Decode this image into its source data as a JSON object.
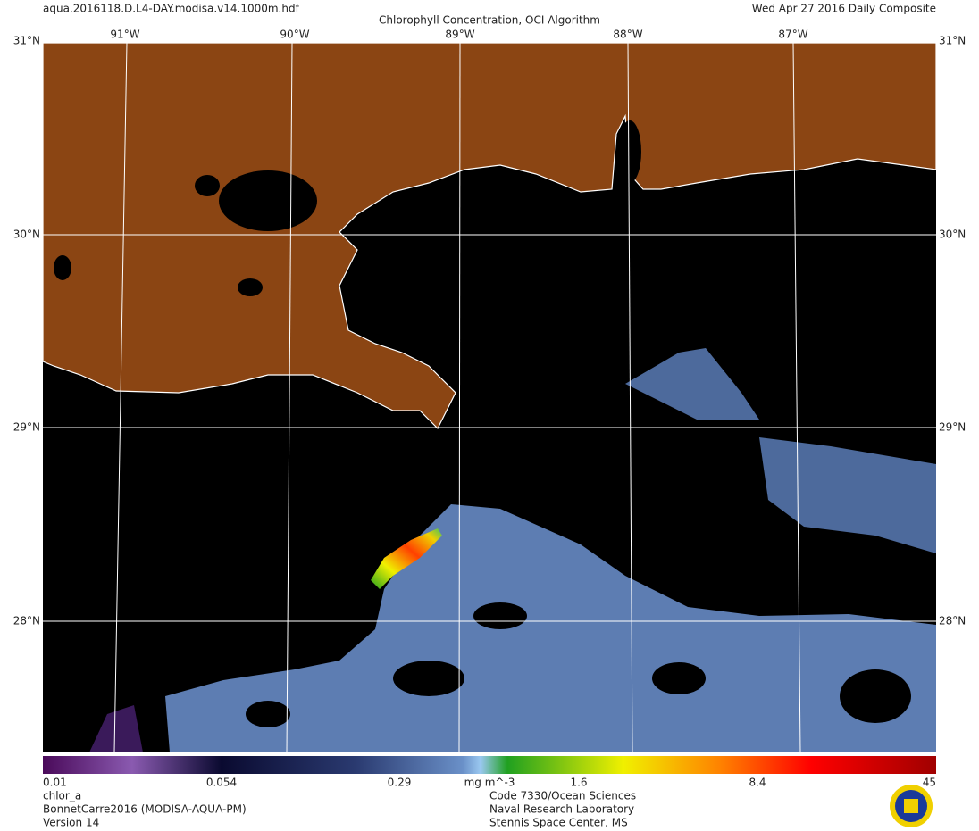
{
  "header": {
    "filename": "aqua.2016118.D.L4-DAY.modisa.v14.1000m.hdf",
    "title": "Chlorophyll Concentration, OCI Algorithm",
    "date": "Wed Apr 27 2016 Daily Composite"
  },
  "map": {
    "longitude_labels": [
      "91°W",
      "90°W",
      "89°W",
      "88°W",
      "87°W"
    ],
    "latitude_labels": [
      "31°N",
      "30°N",
      "29°N",
      "28°N"
    ]
  },
  "colorbar": {
    "tick_labels": [
      "0.01",
      "0.054",
      "0.29",
      "1.6",
      "8.4",
      "45"
    ],
    "units": "mg m^-3"
  },
  "footer": {
    "left": [
      "chlor_a",
      "BonnetCarre2016 (MODISA-AQUA-PM)",
      "Version 14"
    ],
    "center": [
      "Code 7330/Ocean Sciences",
      "Naval Research Laboratory",
      "Stennis Space Center, MS"
    ]
  }
}
